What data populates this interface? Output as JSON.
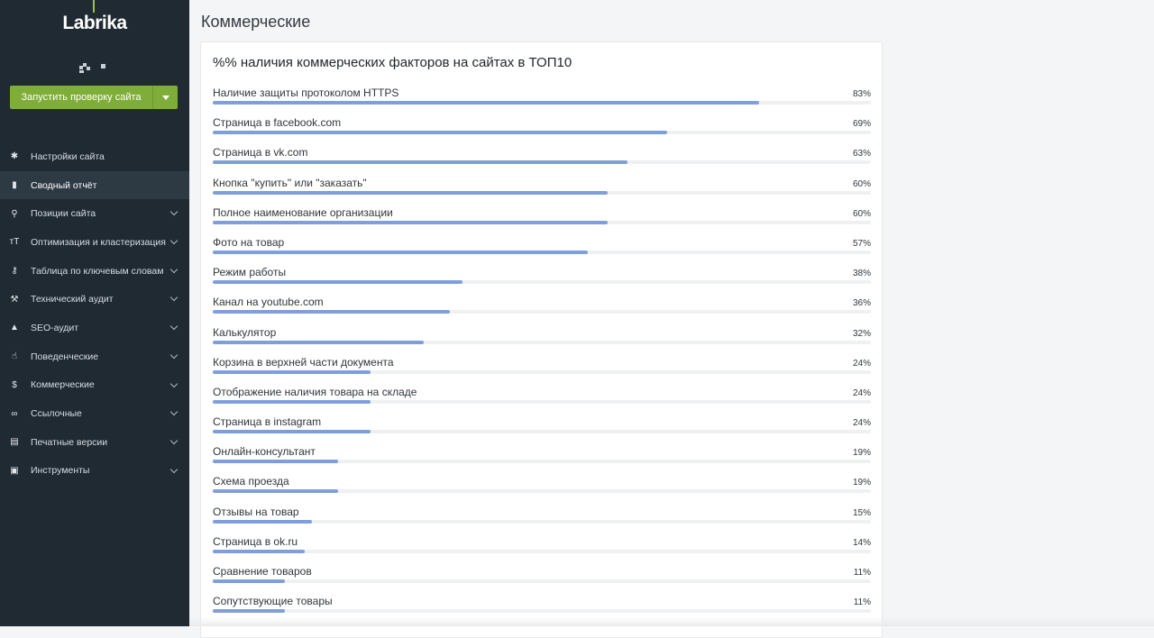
{
  "sidebar": {
    "logo": "Labrika",
    "run_button_label": "Запустить проверку сайта",
    "items": [
      {
        "label": "Настройки сайта",
        "icon": "gear-icon",
        "glyph": "✱",
        "has_chevron": false,
        "active": false
      },
      {
        "label": "Сводный отчёт",
        "icon": "bar-chart-icon",
        "glyph": "▮",
        "has_chevron": false,
        "active": true
      },
      {
        "label": "Позиции сайта",
        "icon": "search-icon",
        "glyph": "⚲",
        "has_chevron": true,
        "active": false
      },
      {
        "label": "Оптимизация и кластеризация",
        "icon": "text-height-icon",
        "glyph": "ᴛT",
        "has_chevron": true,
        "active": false
      },
      {
        "label": "Таблица по ключевым словам",
        "icon": "key-icon",
        "glyph": "⚷",
        "has_chevron": true,
        "active": false
      },
      {
        "label": "Технический аудит",
        "icon": "wrench-icon",
        "glyph": "⚒",
        "has_chevron": true,
        "active": false
      },
      {
        "label": "SEO-аудит",
        "icon": "graduation-cap-icon",
        "glyph": "▲",
        "has_chevron": true,
        "active": false
      },
      {
        "label": "Поведенческие",
        "icon": "hand-pointer-icon",
        "glyph": "☝",
        "has_chevron": true,
        "active": false
      },
      {
        "label": "Коммерческие",
        "icon": "dollar-icon",
        "glyph": "$",
        "has_chevron": true,
        "active": false
      },
      {
        "label": "Ссылочные",
        "icon": "link-icon",
        "glyph": "∞",
        "has_chevron": true,
        "active": false
      },
      {
        "label": "Печатные версии",
        "icon": "print-icon",
        "glyph": "▤",
        "has_chevron": true,
        "active": false
      },
      {
        "label": "Инструменты",
        "icon": "briefcase-icon",
        "glyph": "▣",
        "has_chevron": true,
        "active": false
      }
    ]
  },
  "main": {
    "page_title": "Коммерческие",
    "card_title": "%% наличия коммерческих факторов на сайтах в ТОП10",
    "rows": [
      {
        "label": "Наличие защиты протоколом HTTPS",
        "value": 83,
        "pct": "83%"
      },
      {
        "label": "Страница в facebook.com",
        "value": 69,
        "pct": "69%"
      },
      {
        "label": "Страница в vk.com",
        "value": 63,
        "pct": "63%"
      },
      {
        "label": "Кнопка \"купить\" или \"заказать\"",
        "value": 60,
        "pct": "60%"
      },
      {
        "label": "Полное наименование организации",
        "value": 60,
        "pct": "60%"
      },
      {
        "label": "Фото на товар",
        "value": 57,
        "pct": "57%"
      },
      {
        "label": "Режим работы",
        "value": 38,
        "pct": "38%"
      },
      {
        "label": "Канал на youtube.com",
        "value": 36,
        "pct": "36%"
      },
      {
        "label": "Калькулятор",
        "value": 32,
        "pct": "32%"
      },
      {
        "label": "Корзина в верхней части документа",
        "value": 24,
        "pct": "24%"
      },
      {
        "label": "Отображение наличия товара на складе",
        "value": 24,
        "pct": "24%"
      },
      {
        "label": "Страница в instagram",
        "value": 24,
        "pct": "24%"
      },
      {
        "label": "Онлайн-консультант",
        "value": 19,
        "pct": "19%"
      },
      {
        "label": "Схема проезда",
        "value": 19,
        "pct": "19%"
      },
      {
        "label": "Отзывы на товар",
        "value": 15,
        "pct": "15%"
      },
      {
        "label": "Страница в ok.ru",
        "value": 14,
        "pct": "14%"
      },
      {
        "label": "Сравнение товаров",
        "value": 11,
        "pct": "11%"
      },
      {
        "label": "Сопутствующие товары",
        "value": 11,
        "pct": "11%"
      }
    ]
  },
  "colors": {
    "sidebar_bg": "#1f2a33",
    "accent_green": "#7fad3a",
    "bar_fill": "#7f9fda"
  }
}
